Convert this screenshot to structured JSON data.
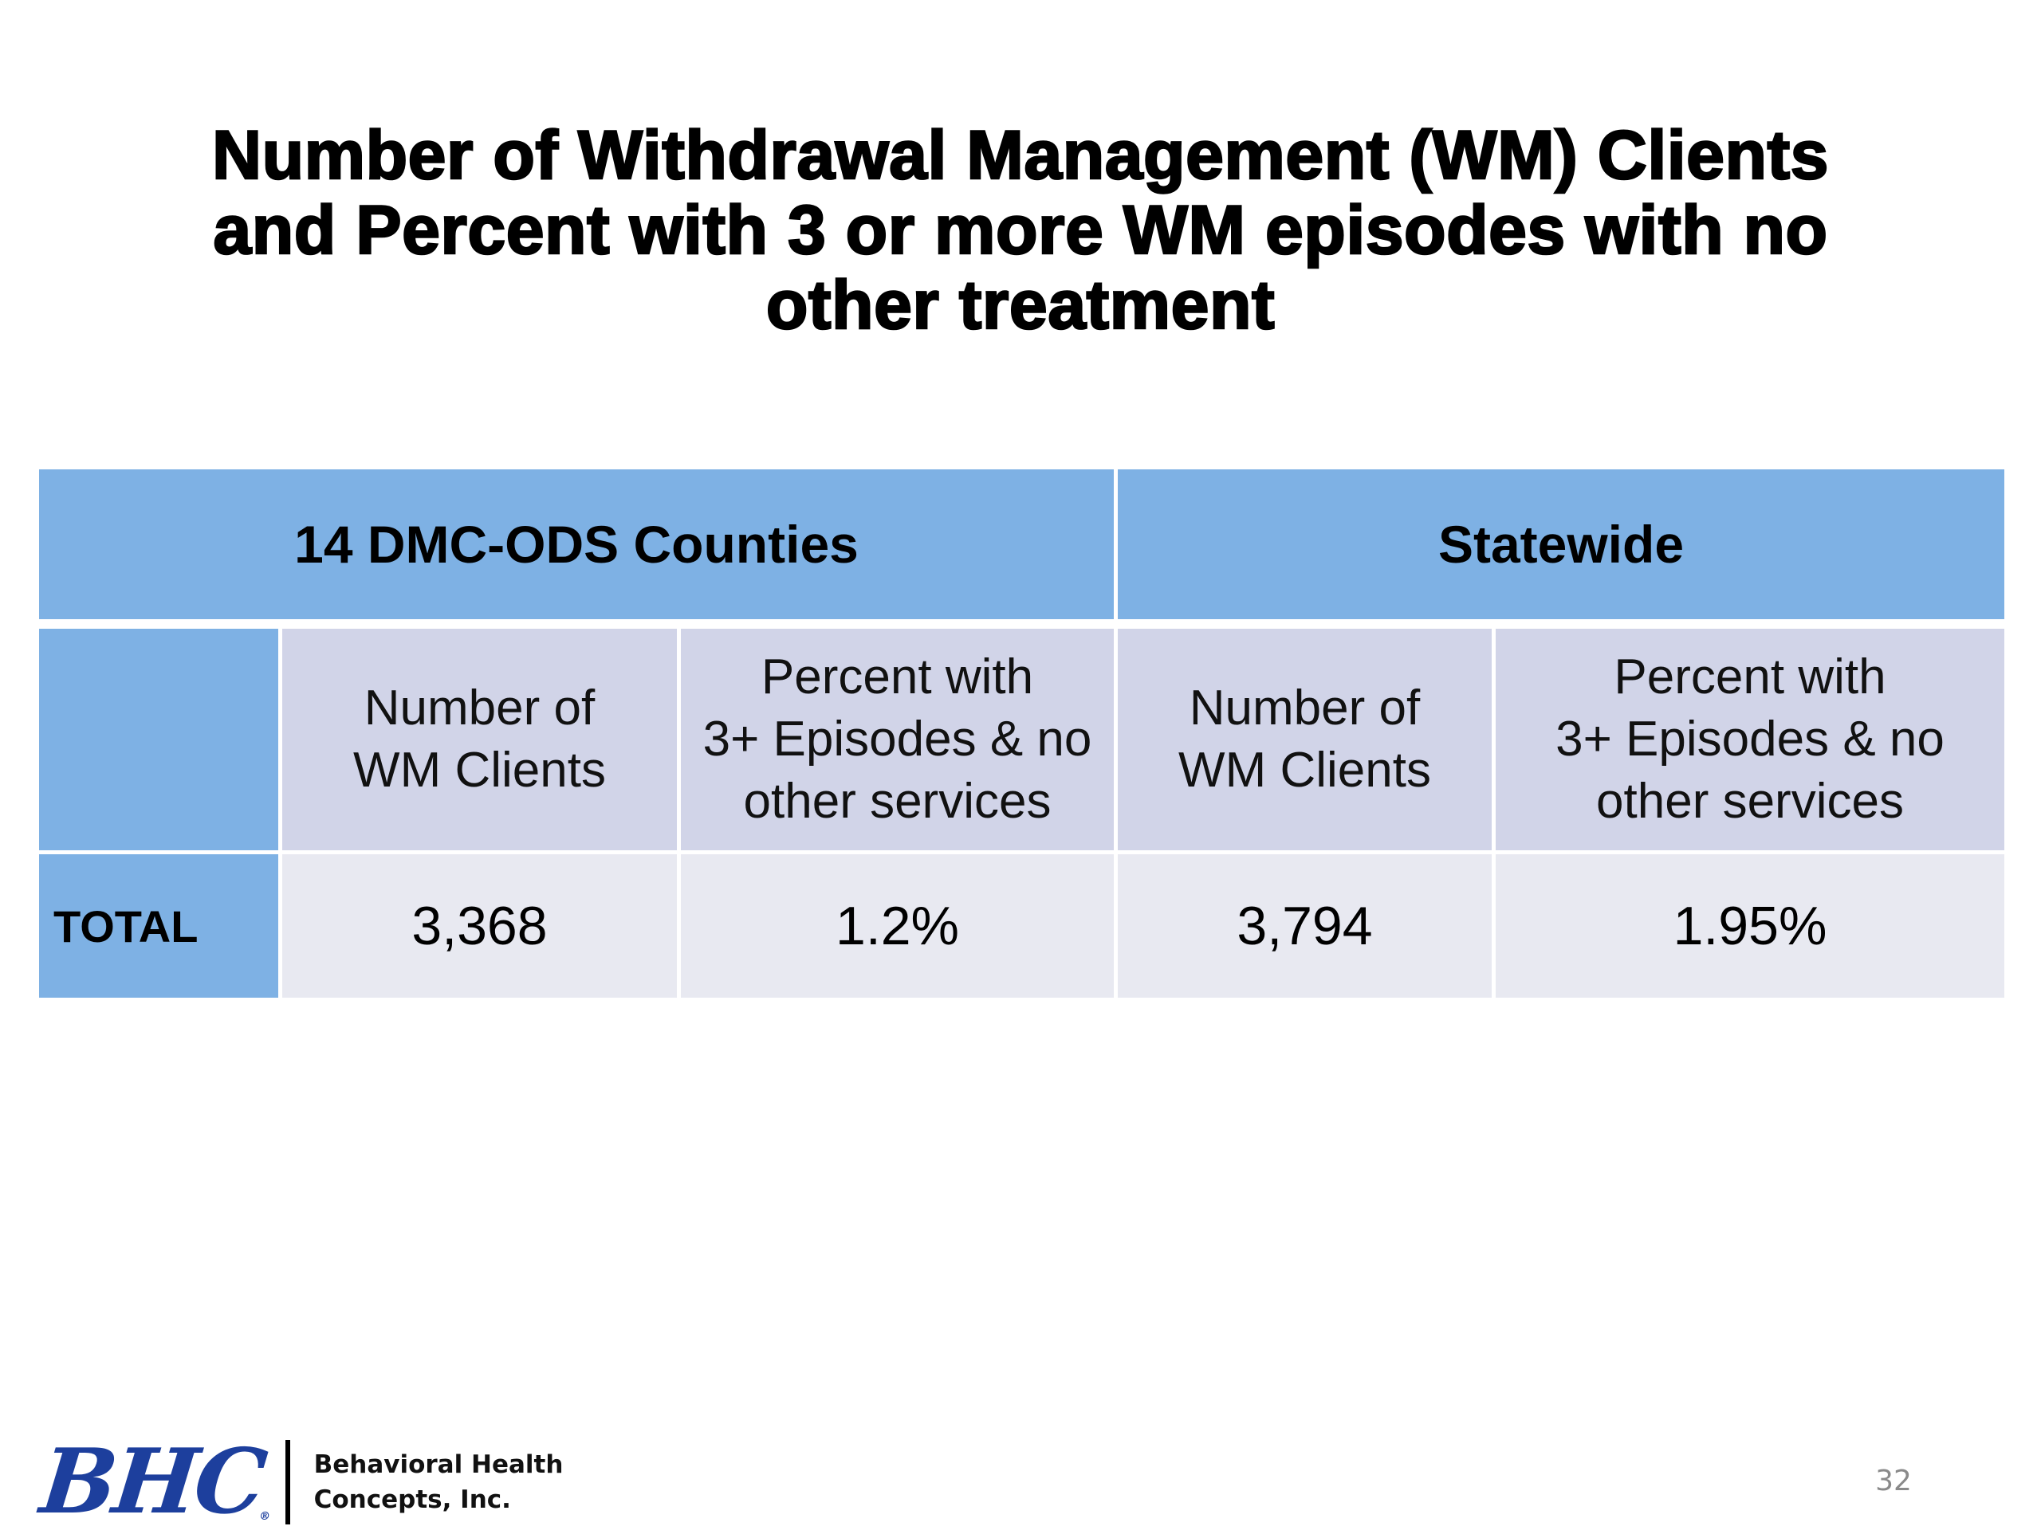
{
  "title": {
    "lines": [
      "Number of Withdrawal Management (WM) Clients",
      "and Percent with 3 or more WM episodes with no",
      "other treatment"
    ]
  },
  "table": {
    "groups": [
      "14  DMC-ODS Counties",
      "Statewide"
    ],
    "column_headers": [
      [
        "Number of",
        "WM Clients"
      ],
      [
        "Percent with",
        "3+ Episodes & no",
        "other services"
      ],
      [
        "Number of",
        "WM Clients"
      ],
      [
        "Percent with",
        "3+ Episodes & no",
        "other services"
      ]
    ],
    "rows": [
      {
        "label": "TOTAL",
        "values": [
          "3,368",
          "1.2%",
          "3,794",
          "1.95%"
        ]
      }
    ]
  },
  "footer": {
    "logo_mark": "BHC",
    "logo_registered": "®",
    "company_lines": [
      "Behavioral Health",
      "Concepts, Inc."
    ],
    "page_number": "32"
  },
  "colors": {
    "header_blue": "#7eb1e4",
    "column_header_bg": "#d1d4e8",
    "data_cell_bg": "#e8e9f1",
    "logo_blue": "#1d3f9d"
  }
}
